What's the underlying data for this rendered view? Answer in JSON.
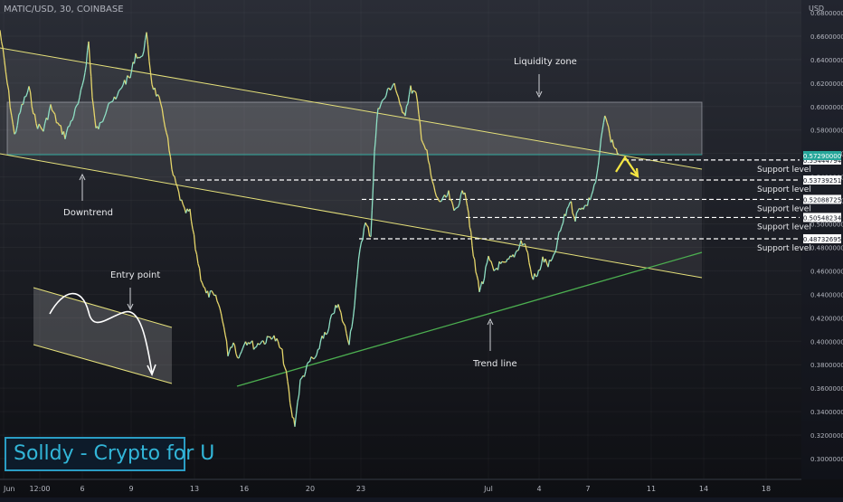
{
  "header": {
    "symbol": "MATIC/USD, 30, COINBASE",
    "currency": "USD"
  },
  "brand": {
    "text": "Solldy - Crypto for U"
  },
  "colors": {
    "background": "#131722",
    "candles_up": "#8ee0c4",
    "candles_down": "#e6d66a",
    "channel": "#e5e07a",
    "trendline": "#4caf50",
    "highlight": "#26a69a",
    "arrow": "#f5e642"
  },
  "chart_data": {
    "type": "line",
    "price_axis_ticks": [
      "0.68000000",
      "0.66000000",
      "0.64000000",
      "0.62000000",
      "0.60000000",
      "0.58000000",
      "0.56000000",
      "0.54000000",
      "0.52000000",
      "0.50000000",
      "0.48000000",
      "0.46000000",
      "0.44000000",
      "0.42000000",
      "0.40000000",
      "0.38000000",
      "0.36000000",
      "0.34000000",
      "0.32000000",
      "0.30000000"
    ],
    "time_axis_ticks": [
      "Jun",
      "12:00",
      "6",
      "9",
      "13",
      "16",
      "20",
      "23",
      "Jul",
      "4",
      "7",
      "11",
      "14",
      "18"
    ],
    "ylim": [
      0.29,
      0.7
    ],
    "series": [
      {
        "values": [
          [
            0,
            0.665
          ],
          [
            8,
            0.62
          ],
          [
            16,
            0.575
          ],
          [
            24,
            0.6
          ],
          [
            32,
            0.615
          ],
          [
            40,
            0.585
          ],
          [
            48,
            0.58
          ],
          [
            56,
            0.6
          ],
          [
            64,
            0.585
          ],
          [
            72,
            0.575
          ],
          [
            80,
            0.59
          ],
          [
            88,
            0.605
          ],
          [
            94,
            0.63
          ],
          [
            98,
            0.655
          ],
          [
            102,
            0.61
          ],
          [
            106,
            0.58
          ],
          [
            112,
            0.585
          ],
          [
            120,
            0.605
          ],
          [
            128,
            0.605
          ],
          [
            136,
            0.62
          ],
          [
            144,
            0.625
          ],
          [
            150,
            0.645
          ],
          [
            156,
            0.64
          ],
          [
            162,
            0.66
          ],
          [
            168,
            0.62
          ],
          [
            176,
            0.605
          ],
          [
            184,
            0.58
          ],
          [
            190,
            0.545
          ],
          [
            196,
            0.53
          ],
          [
            204,
            0.51
          ],
          [
            210,
            0.51
          ],
          [
            216,
            0.48
          ],
          [
            222,
            0.455
          ],
          [
            228,
            0.44
          ],
          [
            234,
            0.44
          ],
          [
            240,
            0.435
          ],
          [
            246,
            0.42
          ],
          [
            252,
            0.39
          ],
          [
            258,
            0.4
          ],
          [
            264,
            0.385
          ],
          [
            270,
            0.4
          ],
          [
            276,
            0.4
          ],
          [
            282,
            0.395
          ],
          [
            288,
            0.4
          ],
          [
            294,
            0.4
          ],
          [
            300,
            0.405
          ],
          [
            306,
            0.4
          ],
          [
            312,
            0.39
          ],
          [
            318,
            0.365
          ],
          [
            322,
            0.34
          ],
          [
            326,
            0.33
          ],
          [
            332,
            0.365
          ],
          [
            338,
            0.375
          ],
          [
            344,
            0.385
          ],
          [
            350,
            0.385
          ],
          [
            356,
            0.405
          ],
          [
            362,
            0.405
          ],
          [
            368,
            0.425
          ],
          [
            374,
            0.43
          ],
          [
            380,
            0.415
          ],
          [
            386,
            0.4
          ],
          [
            392,
            0.43
          ],
          [
            398,
            0.48
          ],
          [
            404,
            0.5
          ],
          [
            410,
            0.49
          ],
          [
            414,
            0.56
          ],
          [
            418,
            0.6
          ],
          [
            424,
            0.605
          ],
          [
            430,
            0.615
          ],
          [
            436,
            0.62
          ],
          [
            442,
            0.6
          ],
          [
            448,
            0.595
          ],
          [
            454,
            0.615
          ],
          [
            460,
            0.61
          ],
          [
            466,
            0.575
          ],
          [
            472,
            0.56
          ],
          [
            478,
            0.535
          ],
          [
            484,
            0.52
          ],
          [
            490,
            0.52
          ],
          [
            496,
            0.525
          ],
          [
            502,
            0.51
          ],
          [
            508,
            0.52
          ],
          [
            514,
            0.53
          ],
          [
            518,
            0.51
          ],
          [
            522,
            0.48
          ],
          [
            526,
            0.46
          ],
          [
            530,
            0.445
          ],
          [
            534,
            0.45
          ],
          [
            540,
            0.47
          ],
          [
            546,
            0.46
          ],
          [
            552,
            0.465
          ],
          [
            558,
            0.465
          ],
          [
            564,
            0.47
          ],
          [
            570,
            0.475
          ],
          [
            576,
            0.485
          ],
          [
            582,
            0.48
          ],
          [
            588,
            0.455
          ],
          [
            594,
            0.455
          ],
          [
            600,
            0.47
          ],
          [
            606,
            0.465
          ],
          [
            612,
            0.47
          ],
          [
            618,
            0.49
          ],
          [
            624,
            0.505
          ],
          [
            630,
            0.52
          ],
          [
            636,
            0.505
          ],
          [
            642,
            0.515
          ],
          [
            648,
            0.515
          ],
          [
            654,
            0.525
          ],
          [
            660,
            0.54
          ],
          [
            666,
            0.58
          ],
          [
            670,
            0.593
          ],
          [
            674,
            0.575
          ],
          [
            680,
            0.565
          ],
          [
            684,
            0.56
          ]
        ]
      }
    ],
    "annotations": {
      "liquidity_zone": "Liquidity zone",
      "downtrend": "Downtrend",
      "entry_point": "Entry point",
      "trend_line": "Trend line",
      "support_levels": [
        {
          "price": "0.55444794",
          "label": "Support level"
        },
        {
          "price": "0.53739251",
          "label": "Support level"
        },
        {
          "price": "0.52088725",
          "label": "Support level"
        },
        {
          "price": "0.50548234",
          "label": "Support level"
        },
        {
          "price": "0.48732695",
          "label": "Support level"
        }
      ],
      "current_price": "0.57290000"
    }
  }
}
